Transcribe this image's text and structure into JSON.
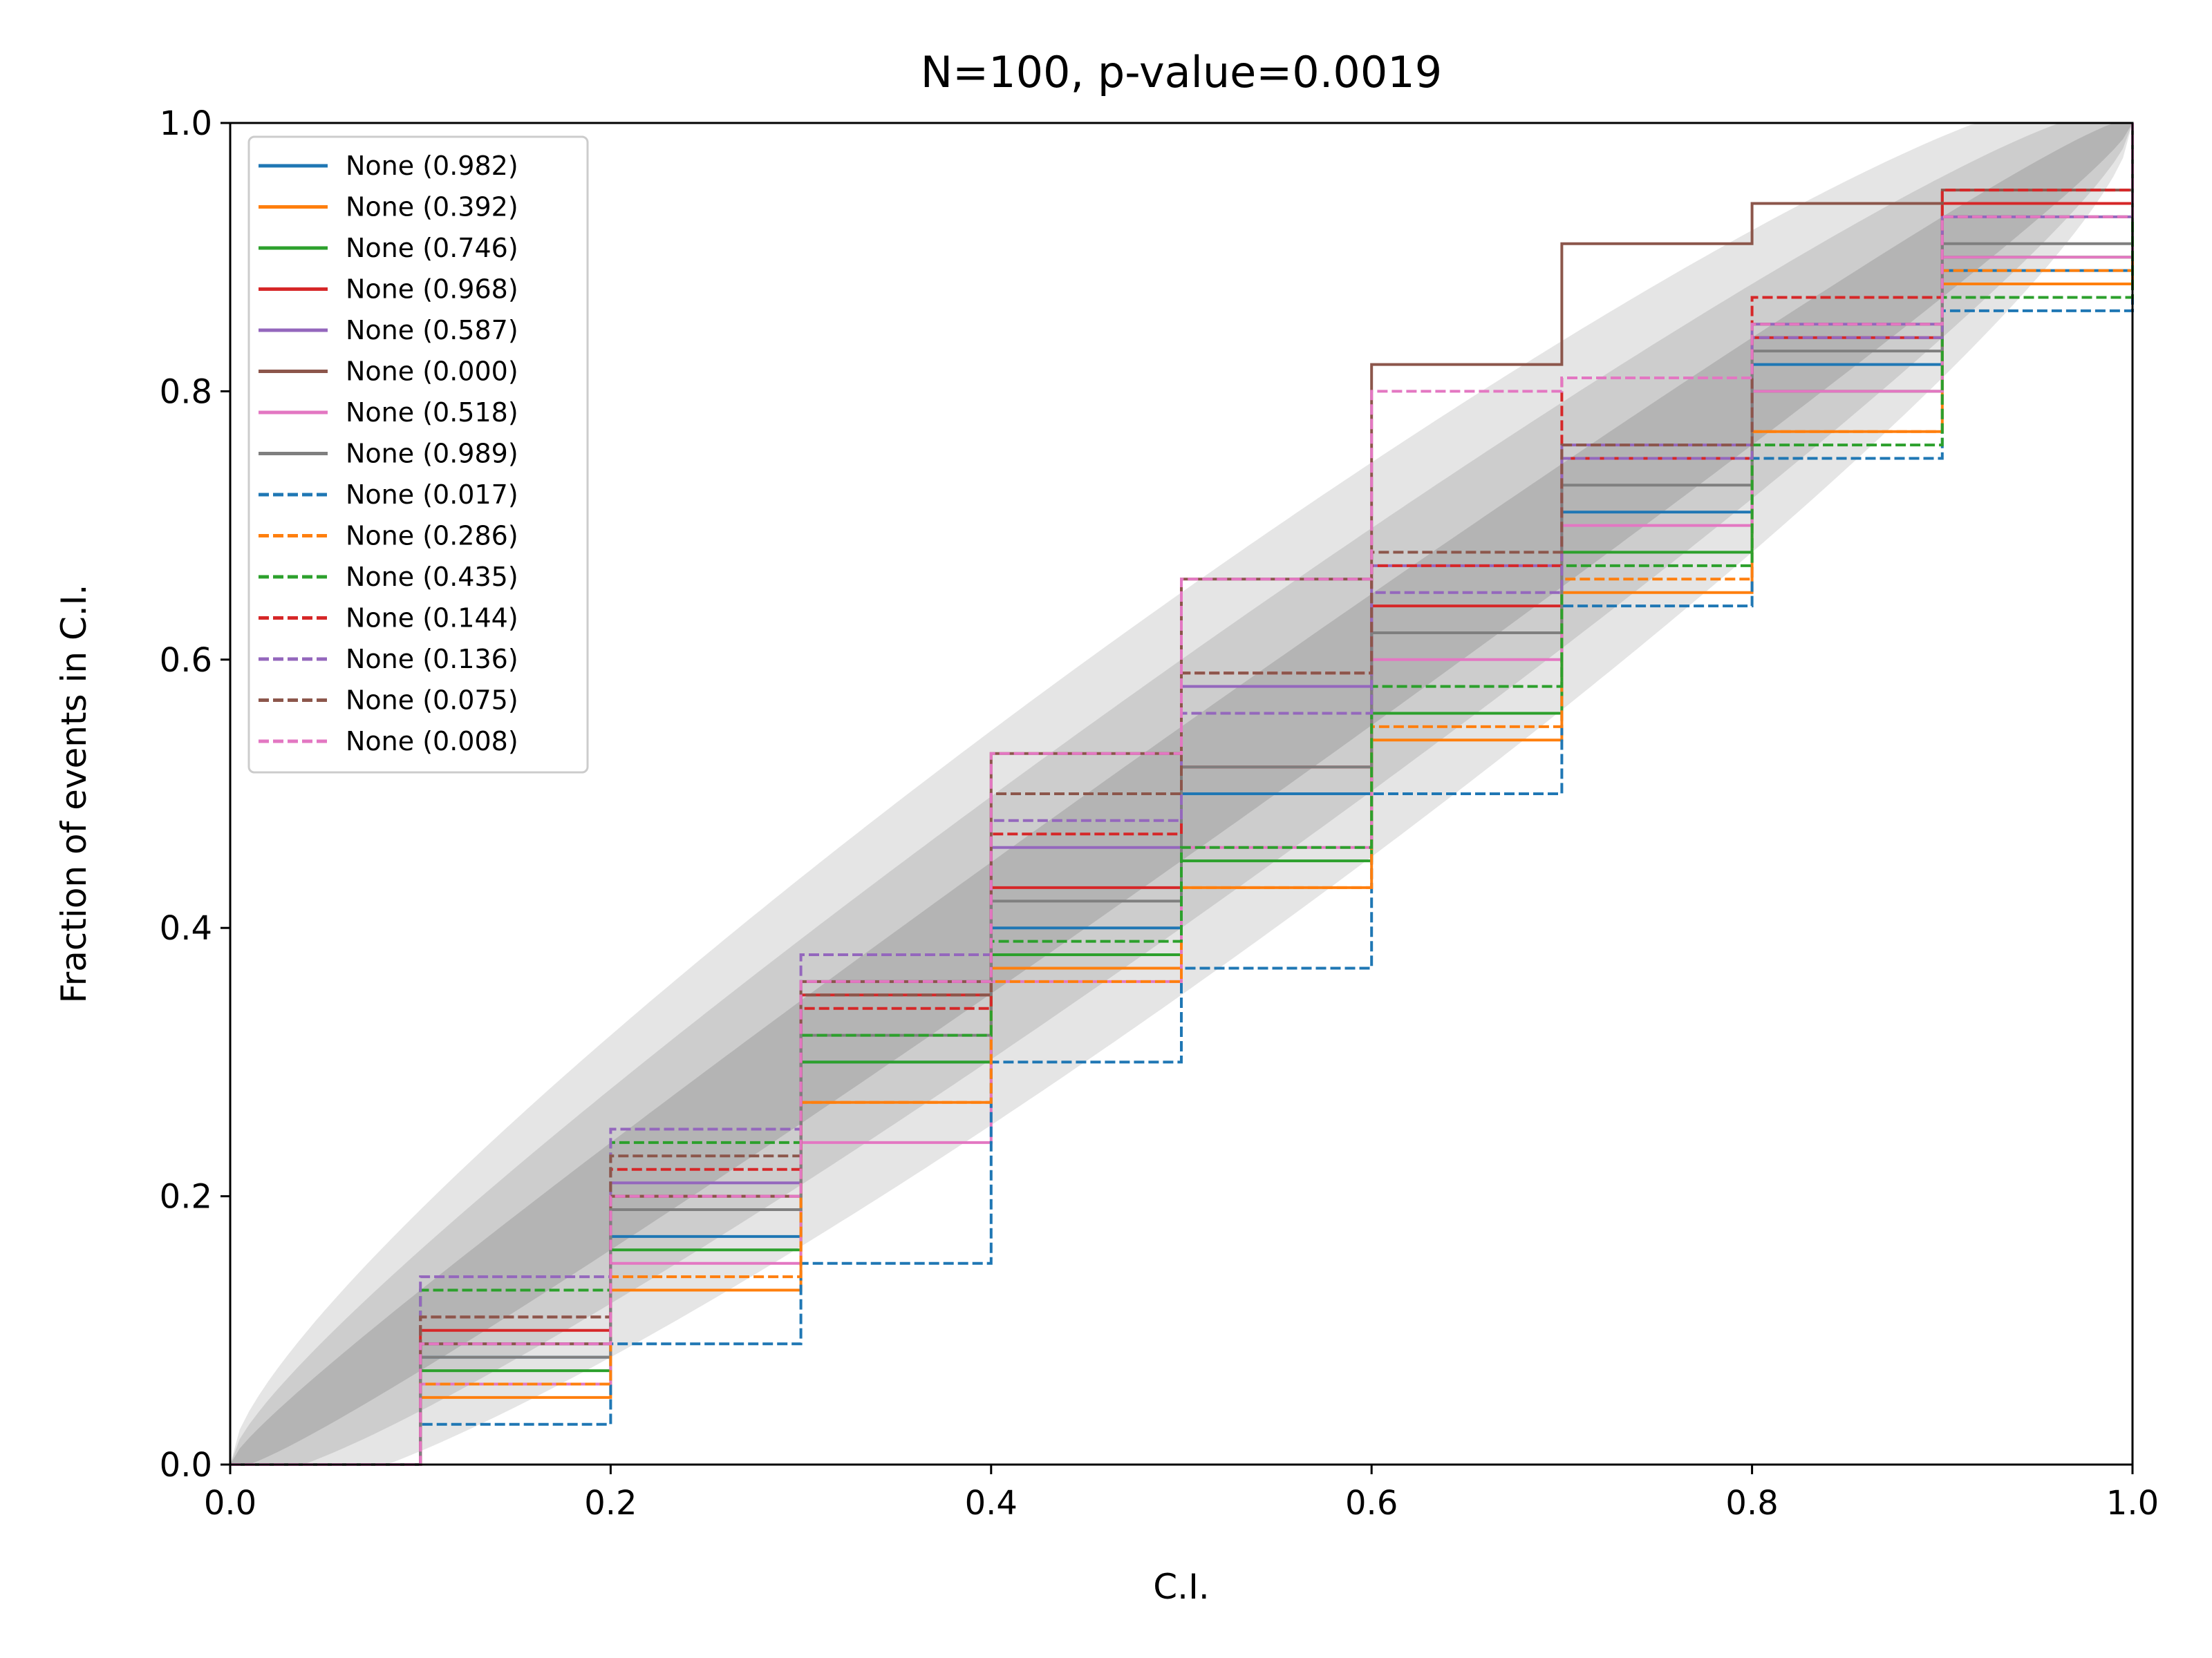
{
  "chart_data": {
    "type": "line",
    "title": "N=100, p-value=0.0019",
    "xlabel": "C.I.",
    "ylabel": "Fraction of events in C.I.",
    "xlim": [
      0,
      1
    ],
    "ylim": [
      0,
      1
    ],
    "x_ticks": [
      "0.0",
      "0.2",
      "0.4",
      "0.6",
      "0.8",
      "1.0"
    ],
    "y_ticks": [
      "0.0",
      "0.2",
      "0.4",
      "0.6",
      "0.8",
      "1.0"
    ],
    "grid": false,
    "legend_position": "top-left",
    "confidence_bands": {
      "levels": [
        "1 sigma",
        "2 sigma",
        "3 sigma"
      ],
      "color": "#000000"
    },
    "series": [
      {
        "name": "None (0.982)",
        "color": "#1f77b4",
        "style": "solid",
        "x": [
          0,
          0.1,
          0.2,
          0.3,
          0.4,
          0.5,
          0.6,
          0.7,
          0.8,
          0.9,
          1
        ],
        "y": [
          0,
          0.08,
          0.17,
          0.3,
          0.4,
          0.5,
          0.62,
          0.71,
          0.82,
          0.89,
          1
        ]
      },
      {
        "name": "None (0.392)",
        "color": "#ff7f0e",
        "style": "solid",
        "x": [
          0,
          0.1,
          0.2,
          0.3,
          0.4,
          0.5,
          0.6,
          0.7,
          0.8,
          0.9,
          1
        ],
        "y": [
          0,
          0.05,
          0.13,
          0.27,
          0.37,
          0.43,
          0.54,
          0.65,
          0.77,
          0.88,
          1
        ]
      },
      {
        "name": "None (0.746)",
        "color": "#2ca02c",
        "style": "solid",
        "x": [
          0,
          0.1,
          0.2,
          0.3,
          0.4,
          0.5,
          0.6,
          0.7,
          0.8,
          0.9,
          1
        ],
        "y": [
          0,
          0.07,
          0.16,
          0.3,
          0.38,
          0.45,
          0.56,
          0.68,
          0.8,
          0.9,
          1
        ]
      },
      {
        "name": "None (0.968)",
        "color": "#d62728",
        "style": "solid",
        "x": [
          0,
          0.1,
          0.2,
          0.3,
          0.4,
          0.5,
          0.6,
          0.7,
          0.8,
          0.9,
          1
        ],
        "y": [
          0,
          0.1,
          0.2,
          0.35,
          0.43,
          0.52,
          0.64,
          0.75,
          0.84,
          0.94,
          1
        ]
      },
      {
        "name": "None (0.587)",
        "color": "#9467bd",
        "style": "solid",
        "x": [
          0,
          0.1,
          0.2,
          0.3,
          0.4,
          0.5,
          0.6,
          0.7,
          0.8,
          0.9,
          1
        ],
        "y": [
          0,
          0.09,
          0.21,
          0.36,
          0.46,
          0.58,
          0.67,
          0.76,
          0.85,
          0.93,
          1
        ]
      },
      {
        "name": "None (0.000)",
        "color": "#8c564b",
        "style": "solid",
        "x": [
          0,
          0.1,
          0.2,
          0.3,
          0.4,
          0.5,
          0.6,
          0.7,
          0.8,
          0.9,
          1
        ],
        "y": [
          0,
          0.09,
          0.2,
          0.36,
          0.53,
          0.66,
          0.82,
          0.91,
          0.94,
          0.95,
          1
        ]
      },
      {
        "name": "None (0.518)",
        "color": "#e377c2",
        "style": "solid",
        "x": [
          0,
          0.1,
          0.2,
          0.3,
          0.4,
          0.5,
          0.6,
          0.7,
          0.8,
          0.9,
          1
        ],
        "y": [
          0,
          0.06,
          0.15,
          0.24,
          0.36,
          0.46,
          0.6,
          0.7,
          0.8,
          0.9,
          1
        ]
      },
      {
        "name": "None (0.989)",
        "color": "#7f7f7f",
        "style": "solid",
        "x": [
          0,
          0.1,
          0.2,
          0.3,
          0.4,
          0.5,
          0.6,
          0.7,
          0.8,
          0.9,
          1
        ],
        "y": [
          0,
          0.08,
          0.19,
          0.32,
          0.42,
          0.52,
          0.62,
          0.73,
          0.83,
          0.91,
          1
        ]
      },
      {
        "name": "None (0.017)",
        "color": "#1f77b4",
        "style": "dashed",
        "x": [
          0,
          0.1,
          0.2,
          0.3,
          0.4,
          0.5,
          0.6,
          0.7,
          0.8,
          0.9,
          1
        ],
        "y": [
          0,
          0.03,
          0.09,
          0.15,
          0.3,
          0.37,
          0.5,
          0.64,
          0.75,
          0.86,
          1
        ]
      },
      {
        "name": "None (0.286)",
        "color": "#ff7f0e",
        "style": "dashed",
        "x": [
          0,
          0.1,
          0.2,
          0.3,
          0.4,
          0.5,
          0.6,
          0.7,
          0.8,
          0.9,
          1
        ],
        "y": [
          0,
          0.06,
          0.14,
          0.27,
          0.36,
          0.43,
          0.55,
          0.66,
          0.77,
          0.89,
          1
        ]
      },
      {
        "name": "None (0.435)",
        "color": "#2ca02c",
        "style": "dashed",
        "x": [
          0,
          0.1,
          0.2,
          0.3,
          0.4,
          0.5,
          0.6,
          0.7,
          0.8,
          0.9,
          1
        ],
        "y": [
          0,
          0.13,
          0.24,
          0.32,
          0.39,
          0.46,
          0.58,
          0.67,
          0.76,
          0.87,
          1
        ]
      },
      {
        "name": "None (0.144)",
        "color": "#d62728",
        "style": "dashed",
        "x": [
          0,
          0.1,
          0.2,
          0.3,
          0.4,
          0.5,
          0.6,
          0.7,
          0.8,
          0.9,
          1
        ],
        "y": [
          0,
          0.11,
          0.22,
          0.34,
          0.47,
          0.59,
          0.67,
          0.81,
          0.87,
          0.95,
          1
        ]
      },
      {
        "name": "None (0.136)",
        "color": "#9467bd",
        "style": "dashed",
        "x": [
          0,
          0.1,
          0.2,
          0.3,
          0.4,
          0.5,
          0.6,
          0.7,
          0.8,
          0.9,
          1
        ],
        "y": [
          0,
          0.14,
          0.25,
          0.38,
          0.48,
          0.56,
          0.65,
          0.75,
          0.84,
          0.93,
          1
        ]
      },
      {
        "name": "None (0.075)",
        "color": "#8c564b",
        "style": "dashed",
        "x": [
          0,
          0.1,
          0.2,
          0.3,
          0.4,
          0.5,
          0.6,
          0.7,
          0.8,
          0.9,
          1
        ],
        "y": [
          0,
          0.11,
          0.23,
          0.35,
          0.5,
          0.59,
          0.68,
          0.76,
          0.85,
          0.93,
          1
        ]
      },
      {
        "name": "None (0.008)",
        "color": "#e377c2",
        "style": "dashed",
        "x": [
          0,
          0.1,
          0.2,
          0.3,
          0.4,
          0.5,
          0.6,
          0.7,
          0.8,
          0.9,
          1
        ],
        "y": [
          0,
          0.09,
          0.2,
          0.36,
          0.53,
          0.66,
          0.8,
          0.81,
          0.85,
          0.93,
          1
        ]
      }
    ]
  }
}
